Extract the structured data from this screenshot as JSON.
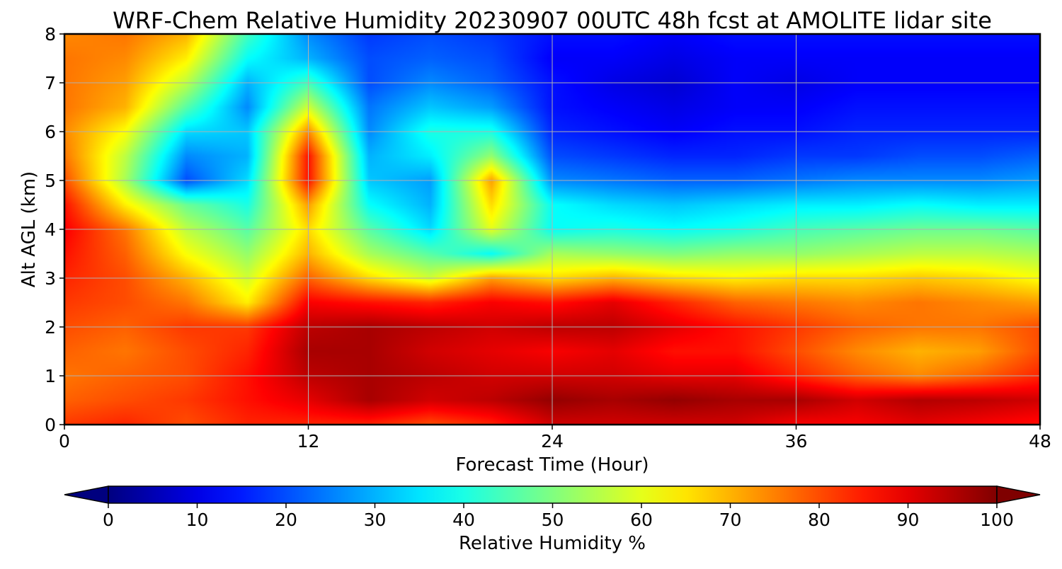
{
  "chart_data": {
    "type": "heatmap",
    "title": "WRF-Chem Relative Humidity 20230907 00UTC 48h fcst at AMOLITE lidar site",
    "xlabel": "Forecast Time (Hour)",
    "ylabel": "Alt AGL (km)",
    "xlim": [
      0,
      48
    ],
    "ylim": [
      0,
      8
    ],
    "x_ticks": [
      "0",
      "12",
      "24",
      "36",
      "48"
    ],
    "y_ticks": [
      "0",
      "1",
      "2",
      "3",
      "4",
      "5",
      "6",
      "7",
      "8"
    ],
    "grid": true,
    "colormap": "jet",
    "colorbar": {
      "label": "Relative Humidity %",
      "orientation": "horizontal",
      "placement": "bottom",
      "extend": "both",
      "range": [
        0,
        100
      ],
      "ticks": [
        "0",
        "10",
        "20",
        "30",
        "40",
        "50",
        "60",
        "70",
        "80",
        "90",
        "100"
      ]
    },
    "x": [
      0,
      3,
      6,
      9,
      12,
      15,
      18,
      21,
      24,
      27,
      30,
      33,
      36,
      39,
      42,
      45,
      48
    ],
    "y": [
      0,
      0.5,
      1,
      1.5,
      2,
      2.5,
      3,
      3.5,
      4,
      4.5,
      5,
      5.5,
      6,
      6.5,
      7,
      7.5,
      8
    ],
    "z": [
      [
        82,
        84,
        80,
        84,
        84,
        84,
        80,
        84,
        92,
        92,
        92,
        92,
        88,
        88,
        90,
        88,
        86
      ],
      [
        78,
        80,
        82,
        86,
        90,
        96,
        92,
        94,
        98,
        96,
        98,
        96,
        96,
        92,
        95,
        94,
        92
      ],
      [
        76,
        78,
        80,
        86,
        94,
        96,
        94,
        92,
        92,
        92,
        90,
        90,
        84,
        78,
        74,
        78,
        84
      ],
      [
        78,
        76,
        80,
        84,
        96,
        96,
        92,
        90,
        88,
        90,
        86,
        86,
        80,
        74,
        70,
        72,
        80
      ],
      [
        80,
        78,
        82,
        82,
        94,
        96,
        94,
        92,
        94,
        94,
        90,
        86,
        82,
        78,
        76,
        76,
        80
      ],
      [
        82,
        80,
        76,
        64,
        88,
        86,
        84,
        88,
        86,
        90,
        84,
        78,
        76,
        74,
        76,
        74,
        72
      ],
      [
        84,
        80,
        70,
        58,
        78,
        66,
        58,
        72,
        66,
        70,
        66,
        64,
        66,
        66,
        68,
        66,
        62
      ],
      [
        86,
        78,
        62,
        52,
        70,
        54,
        46,
        38,
        54,
        52,
        50,
        52,
        52,
        54,
        56,
        56,
        54
      ],
      [
        88,
        76,
        56,
        46,
        66,
        46,
        34,
        60,
        38,
        40,
        38,
        40,
        44,
        46,
        48,
        48,
        46
      ],
      [
        86,
        64,
        48,
        40,
        72,
        38,
        30,
        66,
        38,
        34,
        32,
        34,
        36,
        36,
        38,
        36,
        36
      ],
      [
        80,
        54,
        20,
        34,
        86,
        32,
        28,
        72,
        26,
        24,
        22,
        22,
        24,
        26,
        26,
        26,
        28
      ],
      [
        76,
        56,
        26,
        30,
        86,
        30,
        36,
        52,
        20,
        18,
        16,
        16,
        18,
        18,
        20,
        20,
        22
      ],
      [
        74,
        62,
        34,
        32,
        74,
        26,
        40,
        40,
        16,
        14,
        12,
        14,
        14,
        16,
        16,
        16,
        16
      ],
      [
        76,
        70,
        46,
        26,
        58,
        24,
        32,
        28,
        14,
        12,
        10,
        12,
        12,
        14,
        14,
        14,
        14
      ],
      [
        76,
        72,
        56,
        30,
        44,
        20,
        26,
        22,
        14,
        10,
        8,
        12,
        10,
        12,
        12,
        12,
        12
      ],
      [
        76,
        74,
        64,
        38,
        30,
        20,
        22,
        20,
        12,
        12,
        10,
        12,
        12,
        12,
        12,
        12,
        12
      ],
      [
        74,
        76,
        70,
        44,
        26,
        18,
        20,
        18,
        14,
        14,
        12,
        14,
        14,
        14,
        14,
        14,
        14
      ]
    ]
  }
}
